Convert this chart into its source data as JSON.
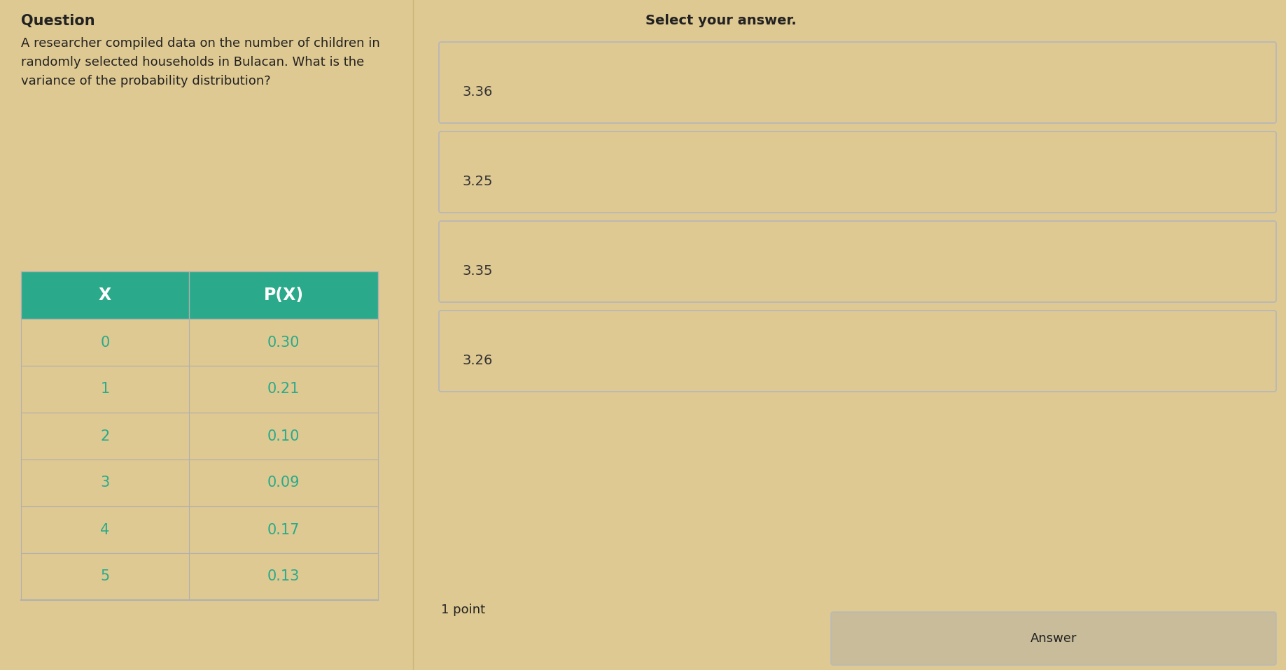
{
  "background_color": "#dfc992",
  "question_label": "Question",
  "question_text": "A researcher compiled data on the number of children in\nrandomly selected households in Bulacan. What is the\nvariance of the probability distribution?",
  "select_label": "Select your answer.",
  "table_header": [
    "X",
    "P(X)"
  ],
  "table_header_bg": "#2aaa8a",
  "table_header_text_color": "#ffffff",
  "table_data": [
    [
      "0",
      "0.30"
    ],
    [
      "1",
      "0.21"
    ],
    [
      "2",
      "0.10"
    ],
    [
      "3",
      "0.09"
    ],
    [
      "4",
      "0.17"
    ],
    [
      "5",
      "0.13"
    ]
  ],
  "table_cell_text_color": "#2aaa8a",
  "table_border_color": "#b0b0b0",
  "answer_options": [
    "3.36",
    "3.25",
    "3.35",
    "3.26"
  ],
  "answer_box_bg": "#dfc992",
  "answer_box_border": "#b8b8b8",
  "answer_text_color": "#333333",
  "point_label": "1 point",
  "answer_button_label": "Answer",
  "answer_button_bg": "#c8bc9a",
  "font_color_dark": "#222222"
}
